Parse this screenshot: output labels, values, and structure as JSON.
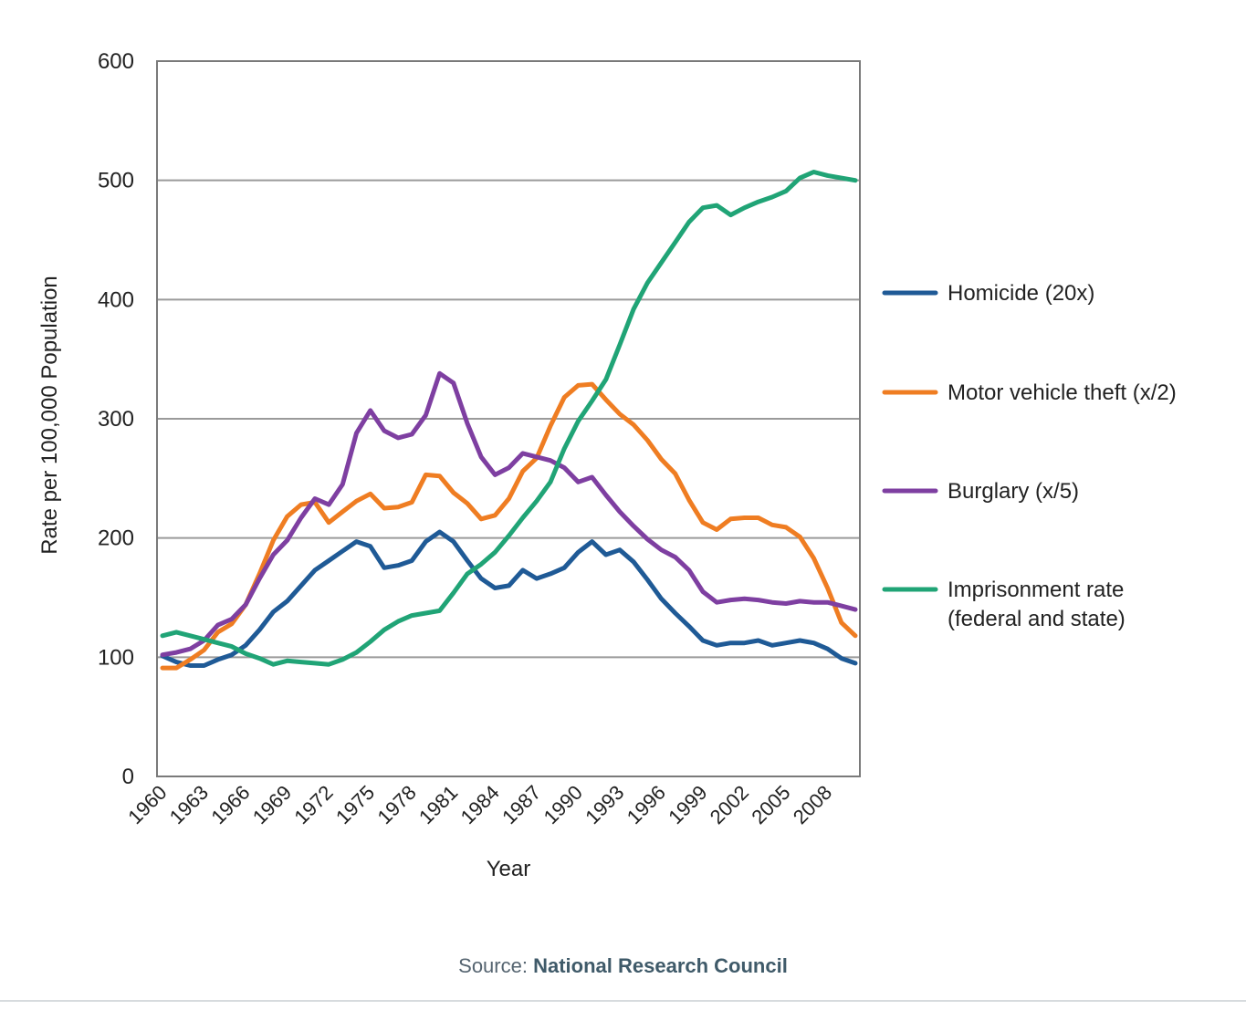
{
  "chart_data": {
    "type": "line",
    "xlabel": "Year",
    "ylabel": "Rate per 100,000 Population",
    "ylim": [
      0,
      600
    ],
    "yticks": [
      0,
      100,
      200,
      300,
      400,
      500,
      600
    ],
    "xlim": [
      1960,
      2010
    ],
    "xticks": [
      1960,
      1963,
      1966,
      1969,
      1972,
      1975,
      1978,
      1981,
      1984,
      1987,
      1990,
      1993,
      1996,
      1999,
      2002,
      2005,
      2008
    ],
    "grid": "horizontal",
    "legend": "right",
    "x": [
      1960,
      1961,
      1962,
      1963,
      1964,
      1965,
      1966,
      1967,
      1968,
      1969,
      1970,
      1971,
      1972,
      1973,
      1974,
      1975,
      1976,
      1977,
      1978,
      1979,
      1980,
      1981,
      1982,
      1983,
      1984,
      1985,
      1986,
      1987,
      1988,
      1989,
      1990,
      1991,
      1992,
      1993,
      1994,
      1995,
      1996,
      1997,
      1998,
      1999,
      2000,
      2001,
      2002,
      2003,
      2004,
      2005,
      2006,
      2007,
      2008,
      2009,
      2010
    ],
    "series": [
      {
        "name": "Homicide (20x)",
        "color": "#1f5a96",
        "values": [
          101,
          96,
          93,
          93,
          98,
          102,
          110,
          123,
          138,
          147,
          160,
          173,
          181,
          189,
          197,
          193,
          175,
          177,
          181,
          197,
          205,
          197,
          181,
          166,
          158,
          160,
          173,
          166,
          170,
          175,
          188,
          197,
          186,
          190,
          180,
          165,
          149,
          137,
          126,
          114,
          110,
          112,
          112,
          114,
          110,
          112,
          114,
          112,
          107,
          99,
          95
        ]
      },
      {
        "name": "Motor vehicle theft (x/2)",
        "color": "#ef7d22",
        "values": [
          91,
          91,
          98,
          106,
          121,
          128,
          144,
          170,
          198,
          218,
          228,
          230,
          213,
          222,
          231,
          237,
          225,
          226,
          230,
          253,
          252,
          238,
          229,
          216,
          219,
          233,
          256,
          267,
          294,
          318,
          328,
          329,
          316,
          304,
          295,
          282,
          266,
          254,
          232,
          213,
          207,
          216,
          217,
          217,
          211,
          209,
          201,
          183,
          158,
          129,
          118
        ]
      },
      {
        "name": "Burglary (x/5)",
        "color": "#7e3fa1",
        "values": [
          102,
          104,
          107,
          114,
          127,
          132,
          144,
          166,
          186,
          198,
          217,
          233,
          228,
          245,
          288,
          307,
          290,
          284,
          287,
          303,
          338,
          330,
          296,
          268,
          253,
          259,
          271,
          268,
          265,
          259,
          247,
          251,
          236,
          222,
          210,
          199,
          190,
          184,
          173,
          155,
          146,
          148,
          149,
          148,
          146,
          145,
          147,
          146,
          146,
          143,
          140
        ]
      },
      {
        "name": "Imprisonment rate (federal and state)",
        "color": "#20a476",
        "values": [
          118,
          121,
          118,
          115,
          112,
          109,
          103,
          99,
          94,
          97,
          96,
          95,
          94,
          98,
          104,
          113,
          123,
          130,
          135,
          137,
          139,
          154,
          170,
          178,
          188,
          202,
          217,
          231,
          247,
          275,
          298,
          315,
          333,
          362,
          392,
          414,
          431,
          448,
          465,
          477,
          479,
          471,
          477,
          482,
          486,
          491,
          502,
          507,
          504,
          502,
          500
        ]
      }
    ]
  },
  "source": {
    "label": "Source:",
    "name": "National Research Council"
  }
}
